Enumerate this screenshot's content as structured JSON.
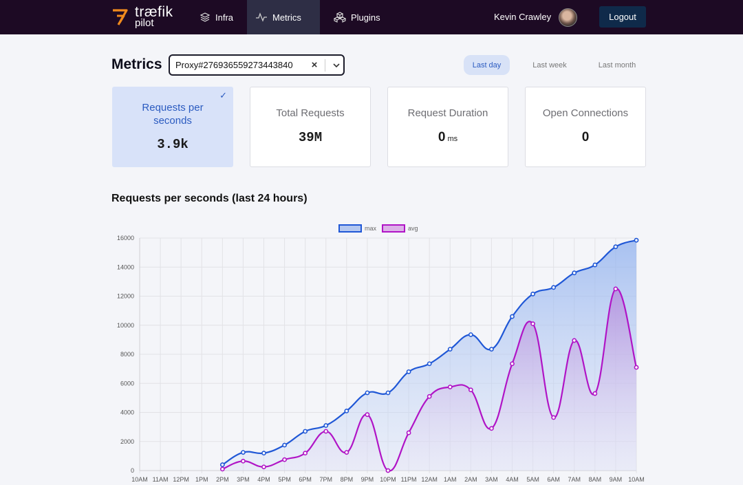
{
  "nav": {
    "brand_top": "træfik",
    "brand_bottom": "pilot",
    "items": [
      {
        "label": "Infra",
        "icon": "layers-icon",
        "active": false
      },
      {
        "label": "Metrics",
        "icon": "activity-icon",
        "active": true
      },
      {
        "label": "Plugins",
        "icon": "boxes-icon",
        "active": false
      }
    ],
    "user_name": "Kevin Crawley",
    "logout_label": "Logout"
  },
  "header": {
    "title": "Metrics",
    "proxy_value": "Proxy#276936559273443840",
    "ranges": [
      {
        "label": "Last day",
        "active": true
      },
      {
        "label": "Last week",
        "active": false
      },
      {
        "label": "Last month",
        "active": false
      }
    ]
  },
  "cards": [
    {
      "label": "Requests per seconds",
      "value": "3.9k",
      "unit": "",
      "selected": true
    },
    {
      "label": "Total Requests",
      "value": "39M",
      "unit": "",
      "selected": false
    },
    {
      "label": "Request Duration",
      "value": "0",
      "unit": "ms",
      "selected": false
    },
    {
      "label": "Open Connections",
      "value": "0",
      "unit": "",
      "selected": false
    }
  ],
  "chart_title": "Requests per seconds (last 24 hours)",
  "colors": {
    "accent": "#2b5bc0",
    "max_line": "#1f57d6",
    "avg_line": "#b014c6",
    "nav_bg": "#1d0a24"
  },
  "chart_data": {
    "type": "line",
    "categories": [
      "10AM",
      "11AM",
      "12PM",
      "1PM",
      "2PM",
      "3PM",
      "4PM",
      "5PM",
      "6PM",
      "7PM",
      "8PM",
      "9PM",
      "10PM",
      "11PM",
      "12AM",
      "1AM",
      "2AM",
      "3AM",
      "4AM",
      "5AM",
      "6AM",
      "7AM",
      "8AM",
      "9AM",
      "10AM"
    ],
    "series": [
      {
        "name": "max",
        "values": [
          null,
          null,
          null,
          null,
          400,
          1250,
          1200,
          1750,
          2700,
          3100,
          4100,
          5350,
          5350,
          6800,
          7350,
          8350,
          9350,
          8350,
          10600,
          12150,
          12600,
          13600,
          14150,
          15400,
          15850
        ]
      },
      {
        "name": "avg",
        "values": [
          null,
          null,
          null,
          null,
          100,
          650,
          250,
          750,
          1200,
          2700,
          1250,
          3850,
          0,
          2600,
          5100,
          5750,
          5550,
          2900,
          7350,
          10100,
          3650,
          8950,
          5300,
          12500,
          7100
        ]
      }
    ],
    "ylim": [
      0,
      16000
    ],
    "yticks": [
      0,
      2000,
      4000,
      6000,
      8000,
      10000,
      12000,
      14000,
      16000
    ],
    "legend": "top-center",
    "grid": true
  }
}
